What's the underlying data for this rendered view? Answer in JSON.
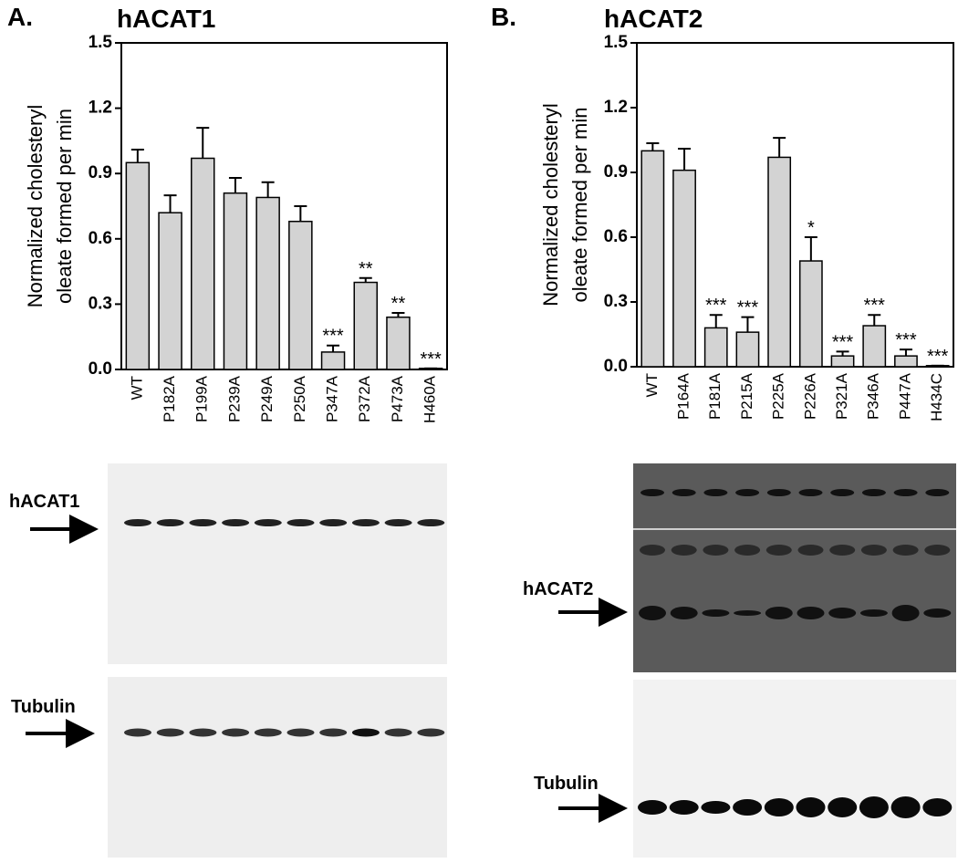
{
  "chart_data": [
    {
      "type": "bar",
      "panel": "A.",
      "title": "hACAT1",
      "ylabel": [
        "Normalized cholesteryl",
        "oleate formed per min"
      ],
      "categories": [
        "WT",
        "P182A",
        "P199A",
        "P239A",
        "P249A",
        "P250A",
        "P347A",
        "P372A",
        "P473A",
        "H460A"
      ],
      "values": [
        0.95,
        0.72,
        0.97,
        0.81,
        0.79,
        0.68,
        0.08,
        0.4,
        0.24,
        0.005
      ],
      "errors": [
        0.06,
        0.08,
        0.14,
        0.07,
        0.07,
        0.07,
        0.03,
        0.02,
        0.02,
        0.0
      ],
      "annotations": [
        null,
        null,
        null,
        null,
        null,
        null,
        "***",
        "**",
        "**",
        "***"
      ],
      "color": "#d3d3d3",
      "ylim": [
        0,
        1.5
      ],
      "yticks": [
        {
          "value": 0,
          "label": "0.0"
        },
        0.3,
        0.6,
        0.9,
        1.2,
        1.5
      ]
    },
    {
      "type": "bar",
      "panel": "B.",
      "title": "hACAT2",
      "ylabel": [
        "Normalized cholesteryl",
        "oleate formed per min"
      ],
      "categories": [
        "WT",
        "P164A",
        "P181A",
        "P215A",
        "P225A",
        "P226A",
        "P321A",
        "P346A",
        "P447A",
        "H434C"
      ],
      "values": [
        1.0,
        0.91,
        0.18,
        0.16,
        0.97,
        0.49,
        0.05,
        0.19,
        0.05,
        0.005
      ],
      "errors": [
        0.035,
        0.1,
        0.06,
        0.07,
        0.09,
        0.11,
        0.02,
        0.05,
        0.03,
        0.0
      ],
      "annotations": [
        null,
        null,
        "***",
        "***",
        null,
        "*",
        "***",
        "***",
        "***",
        "***"
      ],
      "color": "#d3d3d3",
      "ylim": [
        0,
        1.5
      ],
      "yticks": [
        {
          "value": 0,
          "label": "0.0"
        },
        0.3,
        0.6,
        0.9,
        1.2,
        1.5
      ]
    }
  ],
  "blots": {
    "a_top": "hACAT1",
    "a_bottom": "Tubulin",
    "b_top": "hACAT2",
    "b_bottom": "Tubulin"
  }
}
